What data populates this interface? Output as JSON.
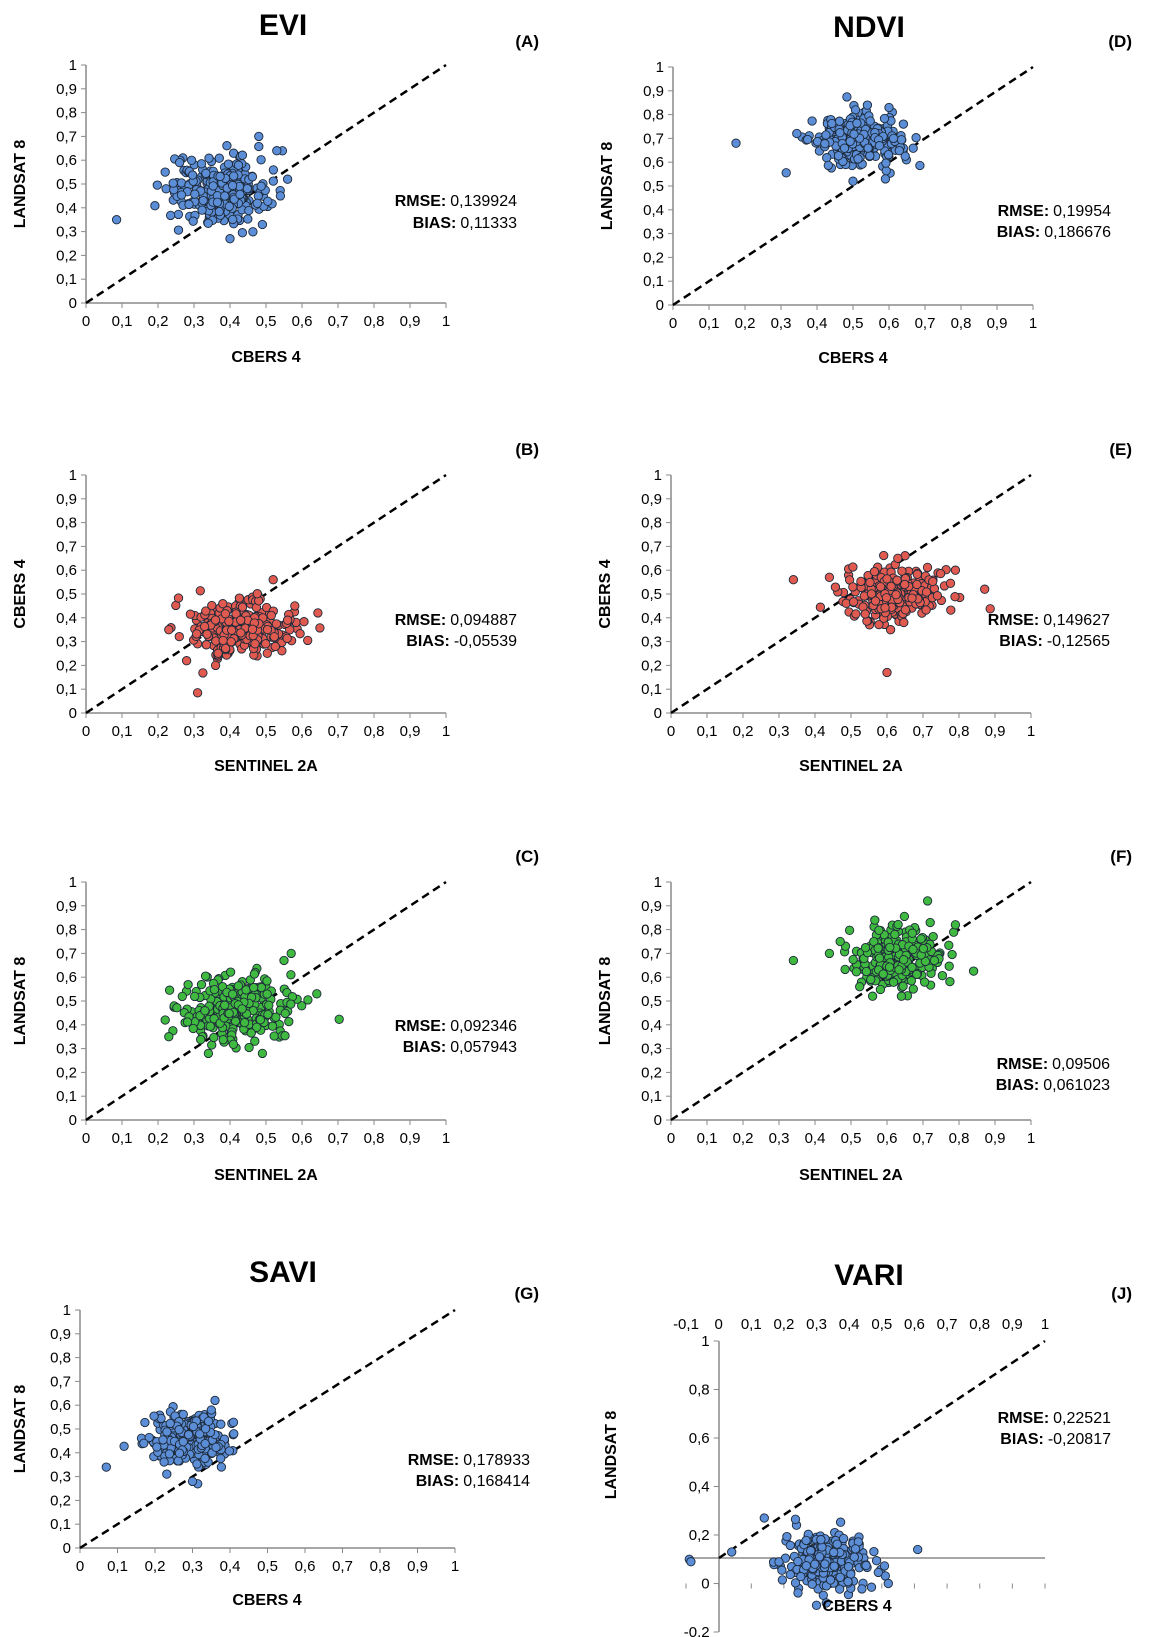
{
  "figure": {
    "panels": [
      {
        "id": "A",
        "title": "EVI",
        "label": "(A)",
        "xlabel": "CBERS 4",
        "ylabel": "LANDSAT 8",
        "rmse_label": "RMSE:",
        "rmse": "0,139924",
        "bias_label": "BIAS:",
        "bias": "0,11333",
        "color": "#5B8ED6"
      },
      {
        "id": "D",
        "title": "NDVI",
        "label": "(D)",
        "xlabel": "CBERS 4",
        "ylabel": "LANDSAT 8",
        "rmse_label": "RMSE:",
        "rmse": "0,19954",
        "bias_label": "BIAS:",
        "bias": "0,186676",
        "color": "#5B8ED6"
      },
      {
        "id": "B",
        "title": "",
        "label": "(B)",
        "xlabel": "SENTINEL 2A",
        "ylabel": "CBERS 4",
        "rmse_label": "RMSE:",
        "rmse": "0,094887",
        "bias_label": "BIAS:",
        "bias": "-0,05539",
        "color": "#E05A50"
      },
      {
        "id": "E",
        "title": "",
        "label": "(E)",
        "xlabel": "SENTINEL 2A",
        "ylabel": "CBERS 4",
        "rmse_label": "RMSE:",
        "rmse": "0,149627",
        "bias_label": "BIAS:",
        "bias": "-0,12565",
        "color": "#E05A50"
      },
      {
        "id": "C",
        "title": "",
        "label": "(C)",
        "xlabel": "SENTINEL 2A",
        "ylabel": "LANDSAT 8",
        "rmse_label": "RMSE:",
        "rmse": "0,092346",
        "bias_label": "BIAS:",
        "bias": "0,057943",
        "color": "#3FB93F"
      },
      {
        "id": "F",
        "title": "",
        "label": "(F)",
        "xlabel": "SENTINEL 2A",
        "ylabel": "LANDSAT 8",
        "rmse_label": "RMSE:",
        "rmse": "0,09506",
        "bias_label": "BIAS:",
        "bias": "0,061023",
        "color": "#3FB93F"
      },
      {
        "id": "G",
        "title": "SAVI",
        "label": "(G)",
        "xlabel": "CBERS 4",
        "ylabel": "LANDSAT 8",
        "rmse_label": "RMSE:",
        "rmse": "0,178933",
        "bias_label": "BIAS:",
        "bias": "0,168414",
        "color": "#5B8ED6"
      },
      {
        "id": "J",
        "title": "VARI",
        "label": "(J)",
        "xlabel": "CBERS 4",
        "ylabel": "LANDSAT 8",
        "rmse_label": "RMSE:",
        "rmse": "0,22521",
        "bias_label": "BIAS:",
        "bias": "-0,20817",
        "color": "#5B8ED6"
      }
    ]
  },
  "chart_data": [
    {
      "type": "scatter",
      "panel": "A",
      "title": "EVI",
      "xlabel": "CBERS 4",
      "ylabel": "LANDSAT 8",
      "xlim": [
        0,
        1
      ],
      "ylim": [
        0,
        1
      ],
      "xticks": [
        "0",
        "0,1",
        "0,2",
        "0,3",
        "0,4",
        "0,5",
        "0,6",
        "0,7",
        "0,8",
        "0,9",
        "1"
      ],
      "yticks": [
        "0",
        "0,1",
        "0,2",
        "0,3",
        "0,4",
        "0,5",
        "0,6",
        "0,7",
        "0,8",
        "0,9",
        "1"
      ],
      "reference_line": "1:1 dashed",
      "annotations": [
        "RMSE: 0,139924",
        "BIAS: 0,11333"
      ],
      "cluster": {
        "n": 280,
        "x_center": 0.37,
        "x_sd": 0.065,
        "y_center": 0.47,
        "y_sd": 0.07
      },
      "points": [
        [
          0.085,
          0.35
        ],
        [
          0.56,
          0.52
        ],
        [
          0.22,
          0.55
        ],
        [
          0.54,
          0.45
        ],
        [
          0.48,
          0.7
        ],
        [
          0.53,
          0.64
        ],
        [
          0.4,
          0.27
        ],
        [
          0.26,
          0.59
        ],
        [
          0.49,
          0.33
        ]
      ]
    },
    {
      "type": "scatter",
      "panel": "D",
      "title": "NDVI",
      "xlabel": "CBERS 4",
      "ylabel": "LANDSAT 8",
      "xlim": [
        0,
        1
      ],
      "ylim": [
        0,
        1
      ],
      "xticks": [
        "0",
        "0,1",
        "0,2",
        "0,3",
        "0,4",
        "0,5",
        "0,6",
        "0,7",
        "0,8",
        "0,9",
        "1"
      ],
      "yticks": [
        "0",
        "0,1",
        "0,2",
        "0,3",
        "0,4",
        "0,5",
        "0,6",
        "0,7",
        "0,8",
        "0,9",
        "1"
      ],
      "reference_line": "1:1 dashed",
      "annotations": [
        "RMSE: 0,19954",
        "BIAS: 0,186676"
      ],
      "cluster": {
        "n": 280,
        "x_center": 0.51,
        "x_sd": 0.06,
        "y_center": 0.69,
        "y_sd": 0.05
      },
      "points": [
        [
          0.175,
          0.68
        ],
        [
          0.54,
          0.84
        ],
        [
          0.6,
          0.83
        ],
        [
          0.5,
          0.52
        ],
        [
          0.59,
          0.53
        ],
        [
          0.64,
          0.76
        ]
      ]
    },
    {
      "type": "scatter",
      "panel": "B",
      "title": "",
      "xlabel": "SENTINEL 2A",
      "ylabel": "CBERS 4",
      "xlim": [
        0,
        1
      ],
      "ylim": [
        0,
        1
      ],
      "xticks": [
        "0",
        "0,1",
        "0,2",
        "0,3",
        "0,4",
        "0,5",
        "0,6",
        "0,7",
        "0,8",
        "0,9",
        "1"
      ],
      "yticks": [
        "0",
        "0,1",
        "0,2",
        "0,3",
        "0,4",
        "0,5",
        "0,6",
        "0,7",
        "0,8",
        "0,9",
        "1"
      ],
      "reference_line": "1:1 dashed",
      "annotations": [
        "RMSE: 0,094887",
        "BIAS: -0,05539"
      ],
      "cluster": {
        "n": 280,
        "x_center": 0.43,
        "x_sd": 0.07,
        "y_center": 0.36,
        "y_sd": 0.055
      },
      "points": [
        [
          0.31,
          0.085
        ],
        [
          0.23,
          0.35
        ],
        [
          0.52,
          0.56
        ],
        [
          0.58,
          0.45
        ],
        [
          0.36,
          0.2
        ],
        [
          0.56,
          0.39
        ]
      ]
    },
    {
      "type": "scatter",
      "panel": "E",
      "title": "",
      "xlabel": "SENTINEL 2A",
      "ylabel": "CBERS 4",
      "xlim": [
        0,
        1
      ],
      "ylim": [
        0,
        1
      ],
      "xticks": [
        "0",
        "0,1",
        "0,2",
        "0,3",
        "0,4",
        "0,5",
        "0,6",
        "0,7",
        "0,8",
        "0,9",
        "1"
      ],
      "yticks": [
        "0",
        "0,1",
        "0,2",
        "0,3",
        "0,4",
        "0,5",
        "0,6",
        "0,7",
        "0,8",
        "0,9",
        "1"
      ],
      "reference_line": "1:1 dashed",
      "annotations": [
        "RMSE: 0,149627",
        "BIAS: -0,12565"
      ],
      "cluster": {
        "n": 280,
        "x_center": 0.62,
        "x_sd": 0.075,
        "y_center": 0.5,
        "y_sd": 0.055
      },
      "points": [
        [
          0.34,
          0.56
        ],
        [
          0.6,
          0.17
        ],
        [
          0.79,
          0.6
        ],
        [
          0.44,
          0.57
        ],
        [
          0.63,
          0.65
        ],
        [
          0.61,
          0.35
        ]
      ]
    },
    {
      "type": "scatter",
      "panel": "C",
      "title": "",
      "xlabel": "SENTINEL 2A",
      "ylabel": "LANDSAT 8",
      "xlim": [
        0,
        1
      ],
      "ylim": [
        0,
        1
      ],
      "xticks": [
        "0",
        "0,1",
        "0,2",
        "0,3",
        "0,4",
        "0,5",
        "0,6",
        "0,7",
        "0,8",
        "0,9",
        "1"
      ],
      "yticks": [
        "0",
        "0,1",
        "0,2",
        "0,3",
        "0,4",
        "0,5",
        "0,6",
        "0,7",
        "0,8",
        "0,9",
        "1"
      ],
      "reference_line": "1:1 dashed",
      "annotations": [
        "RMSE: 0,092346",
        "BIAS: 0,057943"
      ],
      "cluster": {
        "n": 280,
        "x_center": 0.41,
        "x_sd": 0.075,
        "y_center": 0.46,
        "y_sd": 0.07
      },
      "points": [
        [
          0.57,
          0.7
        ],
        [
          0.49,
          0.28
        ],
        [
          0.23,
          0.35
        ],
        [
          0.22,
          0.42
        ],
        [
          0.34,
          0.28
        ],
        [
          0.55,
          0.67
        ]
      ]
    },
    {
      "type": "scatter",
      "panel": "F",
      "title": "",
      "xlabel": "SENTINEL 2A",
      "ylabel": "LANDSAT 8",
      "xlim": [
        0,
        1
      ],
      "ylim": [
        0,
        1
      ],
      "xticks": [
        "0",
        "0,1",
        "0,2",
        "0,3",
        "0,4",
        "0,5",
        "0,6",
        "0,7",
        "0,8",
        "0,9",
        "1"
      ],
      "yticks": [
        "0",
        "0,1",
        "0,2",
        "0,3",
        "0,4",
        "0,5",
        "0,6",
        "0,7",
        "0,8",
        "0,9",
        "1"
      ],
      "reference_line": "1:1 dashed",
      "annotations": [
        "RMSE: 0,09506",
        "BIAS: 0,061023"
      ],
      "cluster": {
        "n": 280,
        "x_center": 0.63,
        "x_sd": 0.065,
        "y_center": 0.68,
        "y_sd": 0.06
      },
      "points": [
        [
          0.34,
          0.67
        ],
        [
          0.72,
          0.83
        ],
        [
          0.79,
          0.82
        ],
        [
          0.56,
          0.52
        ],
        [
          0.64,
          0.52
        ],
        [
          0.44,
          0.7
        ],
        [
          0.47,
          0.75
        ]
      ]
    },
    {
      "type": "scatter",
      "panel": "G",
      "title": "SAVI",
      "xlabel": "CBERS 4",
      "ylabel": "LANDSAT 8",
      "xlim": [
        0,
        1
      ],
      "ylim": [
        0,
        1
      ],
      "xticks": [
        "0",
        "0,1",
        "0,2",
        "0,3",
        "0,4",
        "0,5",
        "0,6",
        "0,7",
        "0,8",
        "0,9",
        "1"
      ],
      "yticks": [
        "0",
        "0,1",
        "0,2",
        "0,3",
        "0,4",
        "0,5",
        "0,6",
        "0,7",
        "0,8",
        "0,9",
        "1"
      ],
      "reference_line": "1:1 dashed",
      "annotations": [
        "RMSE: 0,178933",
        "BIAS: 0,168414"
      ],
      "cluster": {
        "n": 280,
        "x_center": 0.29,
        "x_sd": 0.05,
        "y_center": 0.45,
        "y_sd": 0.06
      },
      "points": [
        [
          0.07,
          0.34
        ],
        [
          0.36,
          0.62
        ],
        [
          0.41,
          0.48
        ],
        [
          0.3,
          0.28
        ],
        [
          0.17,
          0.44
        ],
        [
          0.35,
          0.58
        ]
      ]
    },
    {
      "type": "scatter",
      "panel": "J",
      "title": "VARI",
      "xlabel": "CBERS 4",
      "ylabel": "LANDSAT 8",
      "xlim": [
        -0.1,
        1
      ],
      "ylim": [
        -0.2,
        1
      ],
      "x_axis_position": "top",
      "y_axis_at": 0,
      "xticks": [
        "-0,1",
        "0",
        "0,1",
        "0,2",
        "0,3",
        "0,4",
        "0,5",
        "0,6",
        "0,7",
        "0,8",
        "0,9",
        "1"
      ],
      "yticks": [
        "-0,2",
        "0",
        "0,2",
        "0,4",
        "0,6",
        "0,8",
        "1"
      ],
      "reference_line": "1:1 dashed",
      "annotations": [
        "RMSE: 0,22521",
        "BIAS: -0,20817"
      ],
      "cluster": {
        "n": 280,
        "x_center": 0.33,
        "x_sd": 0.06,
        "y_center": 0.09,
        "y_sd": 0.055
      },
      "points": [
        [
          -0.09,
          0.1
        ],
        [
          -0.085,
          0.09
        ],
        [
          0.04,
          0.13
        ],
        [
          0.61,
          0.14
        ],
        [
          0.52,
          0.0
        ],
        [
          0.33,
          -0.08
        ],
        [
          0.3,
          -0.09
        ],
        [
          0.14,
          0.27
        ]
      ]
    }
  ]
}
